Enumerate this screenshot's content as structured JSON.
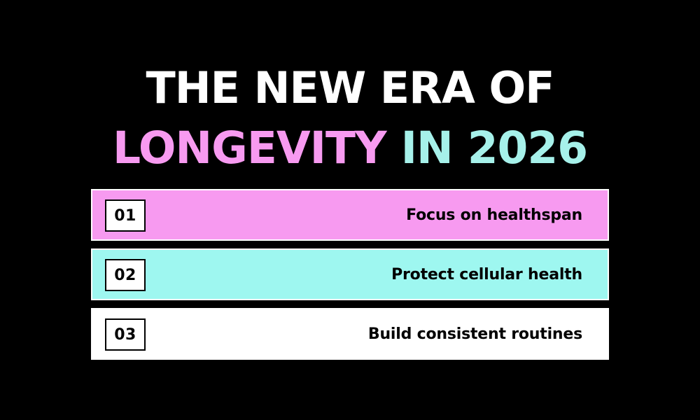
{
  "title": {
    "line1": "THE NEW ERA OF",
    "line2_part1": "LONGEVITY",
    "line2_part2": "IN 2026"
  },
  "colors": {
    "background": "#000000",
    "title_white": "#ffffff",
    "accent_pink": "#f79af0",
    "accent_teal": "#a6f1ea",
    "item_white": "#ffffff"
  },
  "items": [
    {
      "number": "01",
      "label": "Focus on healthspan",
      "color": "#f79af0"
    },
    {
      "number": "02",
      "label": "Protect cellular health",
      "color": "#9ef7f0"
    },
    {
      "number": "03",
      "label": "Build consistent routines",
      "color": "#ffffff"
    }
  ]
}
